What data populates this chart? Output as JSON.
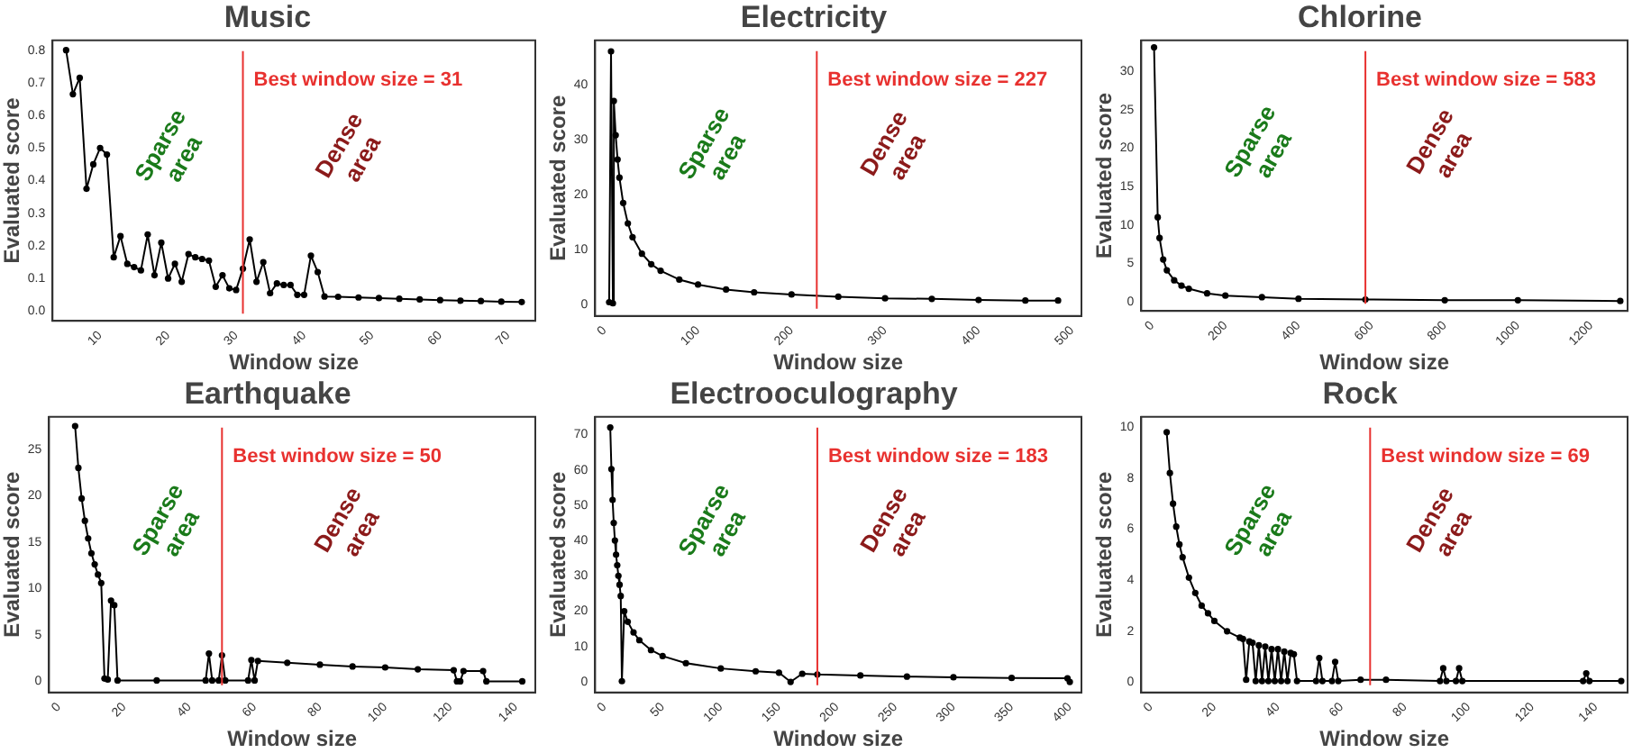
{
  "chart_data": [
    {
      "type": "line",
      "title": "Music",
      "xlabel": "Window size",
      "ylabel": "Evaluated score",
      "color": "#000000",
      "marker": "circle",
      "line_style": "solid",
      "x": [
        5,
        6,
        7,
        8,
        9,
        10,
        11,
        12,
        13,
        14,
        15,
        16,
        17,
        18,
        19,
        20,
        21,
        22,
        23,
        24,
        25,
        26,
        27,
        28,
        29,
        30,
        31,
        32,
        33,
        34,
        35,
        36,
        37,
        38,
        39,
        40,
        41,
        42,
        43,
        45,
        48,
        51,
        54,
        57,
        60,
        63,
        66,
        69,
        72
      ],
      "values": [
        0.8,
        0.665,
        0.715,
        0.375,
        0.45,
        0.5,
        0.48,
        0.165,
        0.23,
        0.145,
        0.135,
        0.125,
        0.235,
        0.11,
        0.21,
        0.1,
        0.145,
        0.09,
        0.175,
        0.165,
        0.16,
        0.155,
        0.075,
        0.11,
        0.07,
        0.065,
        0.13,
        0.22,
        0.09,
        0.15,
        0.055,
        0.085,
        0.08,
        0.08,
        0.05,
        0.05,
        0.17,
        0.12,
        0.045,
        0.044,
        0.042,
        0.04,
        0.038,
        0.036,
        0.034,
        0.032,
        0.031,
        0.029,
        0.028
      ],
      "xlim": [
        3,
        74
      ],
      "ylim": [
        -0.03,
        0.83
      ],
      "xticks": [
        10,
        20,
        30,
        40,
        50,
        60,
        70
      ],
      "yticks": [
        {
          "value": 0,
          "label": "0.0"
        },
        {
          "value": 0.1,
          "label": "0.1"
        },
        {
          "value": 0.2,
          "label": "0.2"
        },
        {
          "value": 0.3,
          "label": "0.3"
        },
        {
          "value": 0.4,
          "label": "0.4"
        },
        {
          "value": 0.5,
          "label": "0.5"
        },
        {
          "value": 0.6,
          "label": "0.6"
        },
        {
          "value": 0.7,
          "label": "0.7"
        },
        {
          "value": 0.8,
          "label": "0.8"
        }
      ],
      "ref_lines": [
        {
          "axis": "x",
          "value": 31,
          "label": "Best window size = 31",
          "color": "#e8312f"
        }
      ],
      "annotations": [
        "Sparse area",
        "Dense area"
      ]
    },
    {
      "type": "line",
      "title": "Electricity",
      "xlabel": "Window size",
      "ylabel": "Evaluated score",
      "color": "#000000",
      "marker": "circle",
      "line_style": "solid",
      "x": [
        5,
        7,
        9,
        10,
        12,
        14,
        16,
        20,
        25,
        30,
        40,
        50,
        60,
        80,
        100,
        130,
        160,
        200,
        250,
        300,
        350,
        400,
        450,
        485
      ],
      "values": [
        0.5,
        46,
        0.3,
        37,
        30.8,
        26.4,
        23.1,
        18.5,
        14.8,
        12.3,
        9.3,
        7.4,
        6.2,
        4.6,
        3.7,
        2.8,
        2.3,
        1.9,
        1.5,
        1.2,
        1.1,
        0.9,
        0.8,
        0.8
      ],
      "xlim": [
        -10,
        510
      ],
      "ylim": [
        -2,
        48
      ],
      "xticks": [
        0,
        100,
        200,
        300,
        400,
        500
      ],
      "yticks": [
        0,
        10,
        20,
        30,
        40
      ],
      "ref_lines": [
        {
          "axis": "x",
          "value": 227,
          "label": "Best window size = 227",
          "color": "#e8312f"
        }
      ],
      "annotations": [
        "Sparse area",
        "Dense area"
      ]
    },
    {
      "type": "line",
      "title": "Chlorine",
      "xlabel": "Window size",
      "ylabel": "Evaluated score",
      "color": "#000000",
      "marker": "circle",
      "line_style": "solid",
      "x": [
        5,
        15,
        20,
        30,
        40,
        60,
        80,
        100,
        150,
        200,
        300,
        400,
        583,
        800,
        1000,
        1280
      ],
      "values": [
        33.1,
        11,
        8.3,
        5.5,
        4.1,
        2.8,
        2.1,
        1.7,
        1.1,
        0.8,
        0.6,
        0.4,
        0.3,
        0.2,
        0.2,
        0.1
      ],
      "xlim": [
        -30,
        1300
      ],
      "ylim": [
        -1.2,
        34
      ],
      "xticks": [
        0,
        200,
        400,
        600,
        800,
        1000,
        1200
      ],
      "yticks": [
        0,
        5,
        10,
        15,
        20,
        25,
        30
      ],
      "ref_lines": [
        {
          "axis": "x",
          "value": 583,
          "label": "Best window size = 583",
          "color": "#e8312f"
        }
      ],
      "annotations": [
        "Sparse area",
        "Dense area"
      ]
    },
    {
      "type": "line",
      "title": "Earthquake",
      "xlabel": "Window size",
      "ylabel": "Evaluated score",
      "color": "#000000",
      "marker": "circle",
      "line_style": "solid",
      "x": [
        5,
        6,
        7,
        8,
        9,
        10,
        11,
        12,
        13,
        14,
        15,
        16,
        17,
        18,
        30,
        45,
        46,
        47,
        49,
        50,
        51,
        58,
        59,
        60,
        61,
        70,
        80,
        90,
        100,
        110,
        121,
        122,
        123,
        124,
        130,
        131,
        142
      ],
      "values": [
        27.5,
        23,
        19.7,
        17.3,
        15.4,
        13.8,
        12.6,
        11.5,
        10.6,
        0.3,
        0.2,
        8.7,
        8.2,
        0.1,
        0.1,
        0.1,
        3,
        0.1,
        0.1,
        2.8,
        0.1,
        0.1,
        2.3,
        0.1,
        2.2,
        2,
        1.8,
        1.6,
        1.5,
        1.3,
        1.2,
        0,
        0,
        1.1,
        1.1,
        0,
        0
      ],
      "xlim": [
        -3,
        146
      ],
      "ylim": [
        -1.2,
        28.5
      ],
      "xticks": [
        0,
        20,
        40,
        60,
        80,
        100,
        120,
        140
      ],
      "yticks": [
        0,
        5,
        10,
        15,
        20,
        25
      ],
      "ref_lines": [
        {
          "axis": "x",
          "value": 50,
          "label": "Best window size = 50",
          "color": "#e8312f"
        }
      ],
      "annotations": [
        "Sparse area",
        "Dense area"
      ]
    },
    {
      "type": "line",
      "title": "Electrooculography",
      "xlabel": "Window size",
      "ylabel": "Evaluated score",
      "color": "#000000",
      "marker": "circle",
      "line_style": "solid",
      "x": [
        5,
        6,
        7,
        8,
        9,
        10,
        11,
        12,
        13,
        14,
        15,
        17,
        20,
        25,
        30,
        40,
        50,
        70,
        100,
        130,
        150,
        160,
        170,
        183,
        220,
        260,
        300,
        350,
        398,
        400
      ],
      "values": [
        72,
        60.2,
        51.5,
        45,
        40,
        36,
        33,
        30,
        27.5,
        24.3,
        0.2,
        20,
        17,
        14,
        11.8,
        9,
        7.3,
        5.3,
        3.8,
        3,
        2.6,
        0,
        2.3,
        2.1,
        1.8,
        1.5,
        1.3,
        1.1,
        1,
        0
      ],
      "xlim": [
        -8,
        410
      ],
      "ylim": [
        -3,
        75
      ],
      "xticks": [
        0,
        50,
        100,
        150,
        200,
        250,
        300,
        350,
        400
      ],
      "yticks": [
        0,
        10,
        20,
        30,
        40,
        50,
        60,
        70
      ],
      "ref_lines": [
        {
          "axis": "x",
          "value": 183,
          "label": "Best window size = 183",
          "color": "#e8312f"
        }
      ],
      "annotations": [
        "Sparse area",
        "Dense area"
      ]
    },
    {
      "type": "line",
      "title": "Rock",
      "xlabel": "Window size",
      "ylabel": "Evaluated score",
      "color": "#000000",
      "marker": "circle",
      "line_style": "solid",
      "x": [
        5,
        6,
        7,
        8,
        9,
        10,
        12,
        14,
        16,
        18,
        20,
        24,
        28,
        29,
        30,
        31,
        32,
        33,
        34,
        35,
        36,
        37,
        38,
        39,
        40,
        41,
        42,
        43,
        44,
        45,
        46,
        52,
        53,
        54,
        57,
        58,
        59,
        66,
        74,
        91,
        92,
        93,
        96,
        97,
        98,
        136,
        137,
        138,
        148
      ],
      "values": [
        9.8,
        8.2,
        7,
        6.1,
        5.4,
        4.9,
        4.1,
        3.5,
        3,
        2.7,
        2.4,
        2,
        1.75,
        1.7,
        0.1,
        1.6,
        1.55,
        0.05,
        1.45,
        0.05,
        1.4,
        0.05,
        1.3,
        0.05,
        1.3,
        0.05,
        1.2,
        0.05,
        1.15,
        1.1,
        0.05,
        0.05,
        0.95,
        0.05,
        0.05,
        0.8,
        0.05,
        0.1,
        0.1,
        0.05,
        0.55,
        0.05,
        0.05,
        0.55,
        0.05,
        0.05,
        0.35,
        0.05,
        0.05
      ],
      "xlim": [
        -3,
        150
      ],
      "ylim": [
        -0.4,
        10.4
      ],
      "xticks": [
        0,
        20,
        40,
        60,
        80,
        100,
        120,
        140
      ],
      "yticks": [
        0,
        2,
        4,
        6,
        8,
        10
      ],
      "ref_lines": [
        {
          "axis": "x",
          "value": 69,
          "label": "Best window size = 69",
          "color": "#e8312f"
        }
      ],
      "annotations": [
        "Sparse area",
        "Dense area"
      ]
    }
  ]
}
